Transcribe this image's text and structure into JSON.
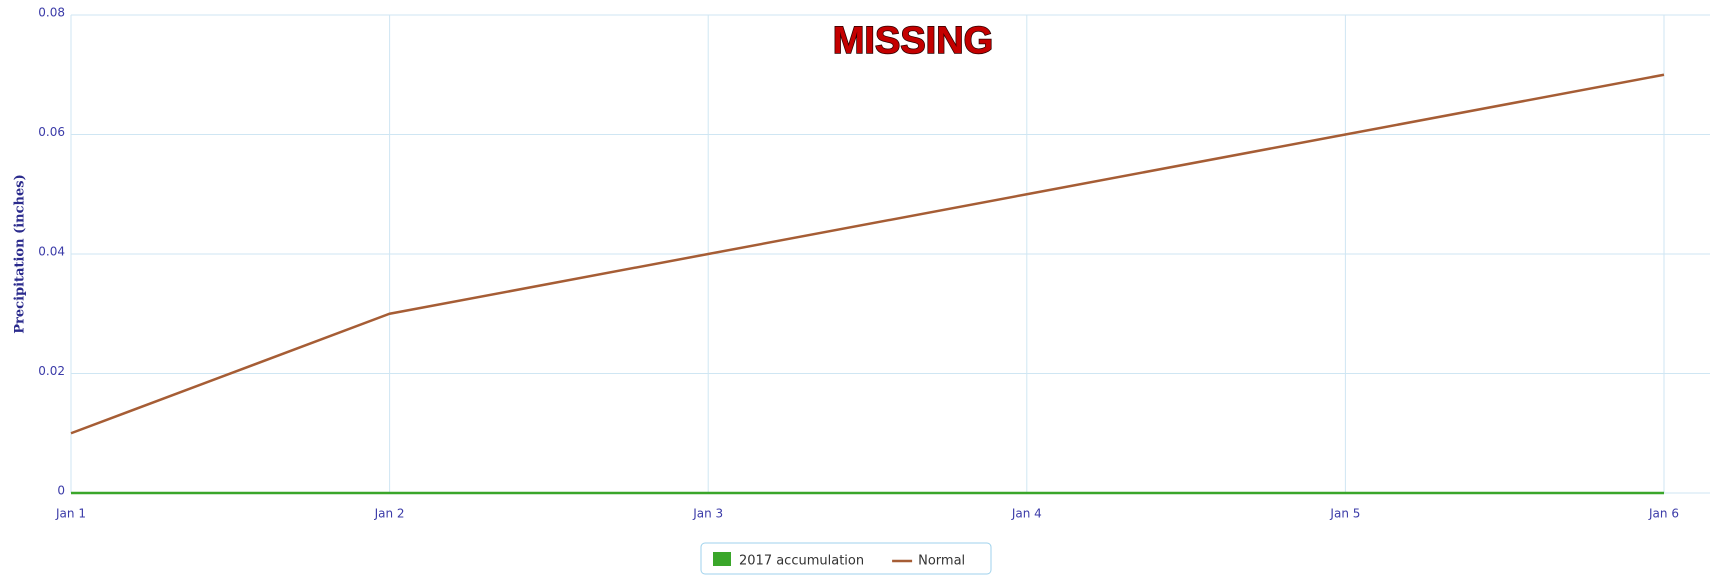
{
  "chart_data": {
    "type": "line",
    "annotation": "MISSING",
    "y_label": "Precipitation (inches)",
    "categories": [
      "Jan 1",
      "Jan 2",
      "Jan 3",
      "Jan 4",
      "Jan 5",
      "Jan 6"
    ],
    "series": [
      {
        "name": "2017 accumulation",
        "color": "#3aa62a",
        "kind": "area",
        "values": [
          0,
          0,
          0,
          0,
          0,
          0
        ]
      },
      {
        "name": "Normal",
        "color": "#a65d35",
        "kind": "line",
        "values": [
          0.01,
          0.03,
          0.04,
          0.05,
          0.06,
          0.07
        ]
      }
    ],
    "ylim": [
      0,
      0.08
    ],
    "yticks": [
      0,
      0.02,
      0.04,
      0.06,
      0.08
    ],
    "grid": true,
    "legend": "bottom"
  }
}
